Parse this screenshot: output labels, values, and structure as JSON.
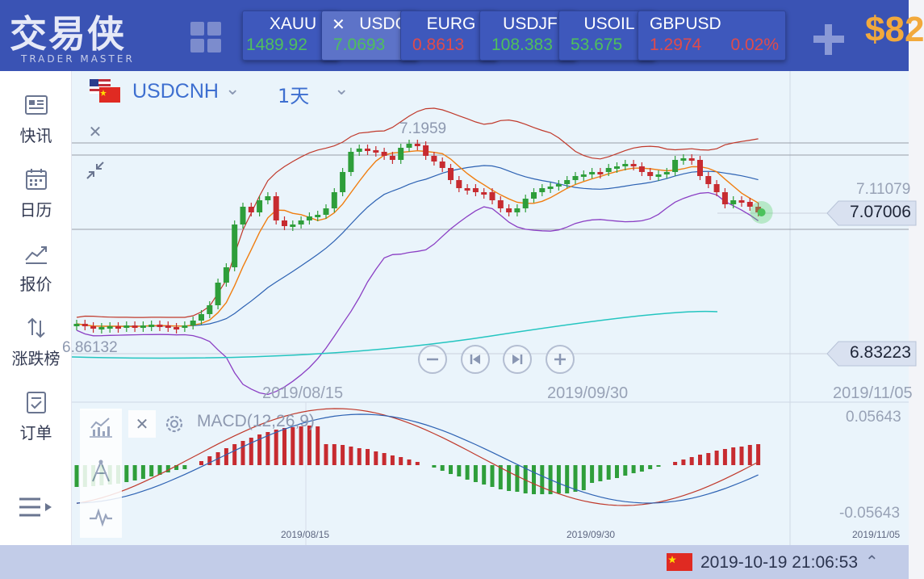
{
  "logo": {
    "title": "交易侠",
    "subtitle": "TRADER MASTER"
  },
  "tickers": [
    {
      "name": "XAUU",
      "price": "1489.92",
      "change": "",
      "direction": "up"
    },
    {
      "name": "USDC",
      "price": "7.0693",
      "change": "",
      "direction": "up",
      "active": true
    },
    {
      "name": "EURG",
      "price": "0.8613",
      "change": "",
      "direction": "down"
    },
    {
      "name": "USDJF",
      "price": "108.383",
      "change": "",
      "direction": "up"
    },
    {
      "name": "USOIL",
      "price": "53.675",
      "change": "",
      "direction": "up"
    },
    {
      "name": "GBPUSD",
      "price": "1.2974",
      "change": "0.02%",
      "direction": "down"
    }
  ],
  "balance": "$82",
  "sidebar": {
    "items": [
      {
        "label": "快讯",
        "icon": "news-icon"
      },
      {
        "label": "日历",
        "icon": "calendar-icon"
      },
      {
        "label": "报价",
        "icon": "quote-chart-icon"
      },
      {
        "label": "涨跌榜",
        "icon": "updown-icon"
      },
      {
        "label": "订单",
        "icon": "order-icon"
      }
    ]
  },
  "chart": {
    "symbol": "USDCNH",
    "period": "1天",
    "high_label": "7.1959",
    "low_label_left": "6.86132",
    "price_axis_mid": "7.11079",
    "current_price": "7.07006",
    "low_price": "6.83223",
    "date_labels": [
      "2019/08/15",
      "2019/09/30",
      "2019/11/05"
    ],
    "macd": {
      "title": "MACD(12,26,9)",
      "max": "0.05643",
      "min": "-0.05643",
      "date_labels": [
        "2019/08/15",
        "2019/09/30",
        "2019/11/05"
      ]
    }
  },
  "colors": {
    "up": "#2e9e3a",
    "down": "#c72b30",
    "accent": "#3e6fd0",
    "header": "#3a53b4"
  },
  "status": {
    "datetime": "2019-10-19 21:06:53"
  }
}
